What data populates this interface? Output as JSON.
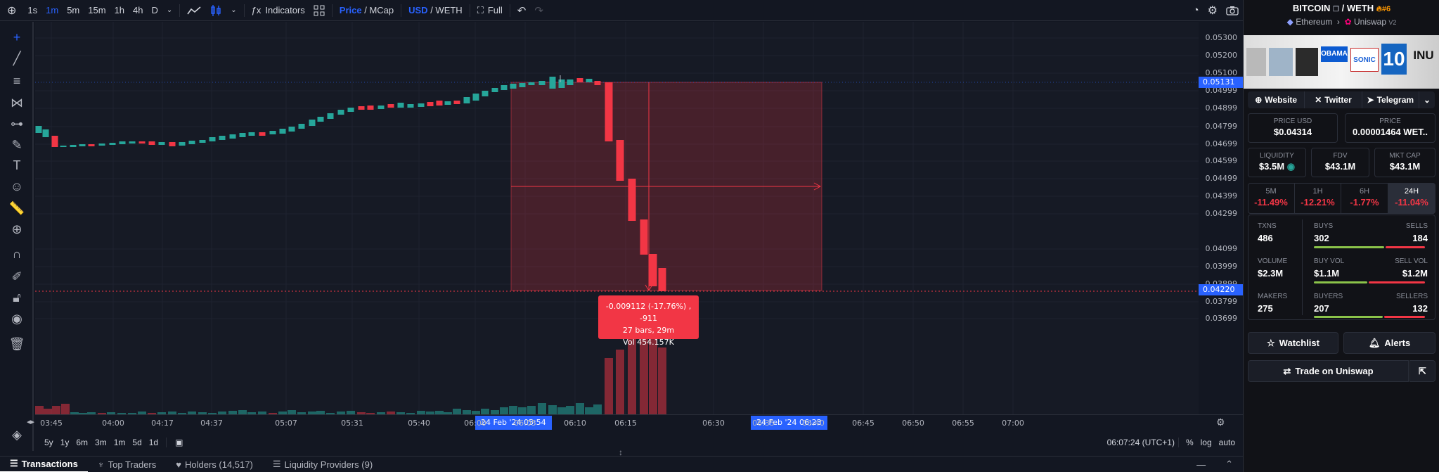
{
  "toolbar": {
    "intervals": [
      "1s",
      "1m",
      "5m",
      "15m",
      "1h",
      "4h",
      "D"
    ],
    "active_interval": "1m",
    "indicators_label": "Indicators",
    "price_label": "Price",
    "mcap_label": "MCap",
    "usd_label": "USD",
    "weth_label": "WETH",
    "full_label": "Full"
  },
  "chart": {
    "price_ticks": [
      "0.05300",
      "0.05200",
      "0.05100",
      "0.04999",
      "0.04899",
      "0.04799",
      "0.04699",
      "0.04599",
      "0.04499",
      "0.04399",
      "0.04299",
      "0.04099",
      "0.03999",
      "0.03899",
      "0.03799",
      "0.03699"
    ],
    "current_price_label": "0.05131",
    "crosshair_price_label": "0.04220",
    "time_ticks": [
      "03:45",
      "04:00",
      "04:17",
      "04:37",
      "05:07",
      "05:31",
      "05:40",
      "06:00",
      "06:05",
      "06:10",
      "06:15",
      "06:30",
      "06:35",
      "06:40",
      "06:45",
      "06:50",
      "06:55",
      "07:00"
    ],
    "time_label_start": "24 Feb '24   05:54",
    "time_label_end": "24 Feb '24   06:23",
    "measure": {
      "line1": "-0.009112 (-17.76%) , -911",
      "line2": "27 bars, 29m",
      "line3": "Vol 454.157K"
    }
  },
  "rangebar": {
    "ranges": [
      "5y",
      "1y",
      "6m",
      "3m",
      "1m",
      "5d",
      "1d"
    ],
    "clock": "06:07:24 (UTC+1)",
    "pct": "%",
    "log": "log",
    "auto": "auto"
  },
  "bottom_tabs": [
    "Transactions",
    "Top Traders",
    "Holders (14,517)",
    "Liquidity Providers (9)"
  ],
  "panel": {
    "title_base": "BITCOIN",
    "title_quote": "WETH",
    "rank": "#6",
    "chain": "Ethereum",
    "dex": "Uniswap",
    "dex_version": "V2",
    "banner_texts": [
      "OBAMA",
      "SONIC",
      "10",
      "INU"
    ],
    "links": [
      "Website",
      "Twitter",
      "Telegram"
    ],
    "price_usd_label": "PRICE USD",
    "price_usd": "$0.04314",
    "price_label": "PRICE",
    "price_weth": "0.00001464 WET..",
    "liquidity_label": "LIQUIDITY",
    "liquidity": "$3.5M",
    "fdv_label": "FDV",
    "fdv": "$43.1M",
    "mktcap_label": "MKT CAP",
    "mktcap": "$43.1M",
    "changes": [
      {
        "label": "5M",
        "value": "-11.49%"
      },
      {
        "label": "1H",
        "value": "-12.21%"
      },
      {
        "label": "6H",
        "value": "-1.77%"
      },
      {
        "label": "24H",
        "value": "-11.04%"
      }
    ],
    "txns_label": "TXNS",
    "txns": "486",
    "buys_label": "BUYS",
    "buys": "302",
    "sells_label": "SELLS",
    "sells": "184",
    "volume_label": "VOLUME",
    "volume": "$2.3M",
    "buyvol_label": "BUY VOL",
    "buyvol": "$1.1M",
    "sellvol_label": "SELL VOL",
    "sellvol": "$1.2M",
    "makers_label": "MAKERS",
    "makers": "275",
    "buyers_label": "BUYERS",
    "buyers": "207",
    "sellers_label": "SELLERS",
    "sellers": "132",
    "watchlist_label": "Watchlist",
    "alerts_label": "Alerts",
    "trade_label": "Trade on Uniswap"
  },
  "colors": {
    "up": "#26a69a",
    "down": "#f23645",
    "accent": "#2962ff"
  }
}
